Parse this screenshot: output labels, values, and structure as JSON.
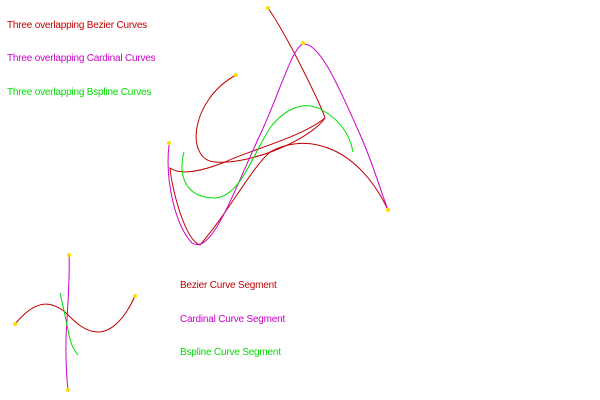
{
  "legend": {
    "bezier_overlap": "Three overlapping Bezier Curves",
    "cardinal_overlap": "Three overlapping Cardinal Curves",
    "bspline_overlap": "Three overlapping Bspline Curves",
    "bezier_segment": "Bezier Curve Segment",
    "cardinal_segment": "Cardinal Curve Segment",
    "bspline_segment": "Bspline Curve Segment"
  },
  "colors": {
    "bezier": "#c00000",
    "cardinal": "#cc00cc",
    "bspline": "#00dd00",
    "control_point": "#ffdd00",
    "background": "#ffffff"
  }
}
